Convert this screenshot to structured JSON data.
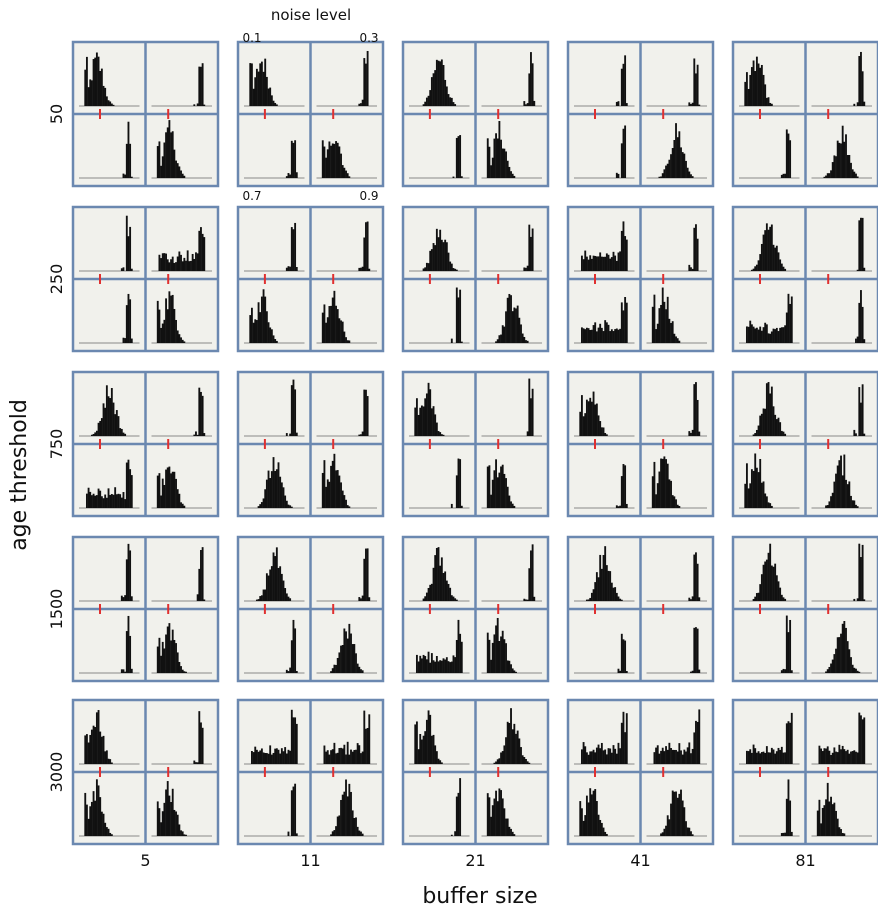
{
  "chart_data": {
    "type": "histogram-grid",
    "xlabel": "buffer size",
    "ylabel": "age threshold",
    "columns": [
      "5",
      "11",
      "21",
      "41",
      "81"
    ],
    "rows": [
      "50",
      "250",
      "750",
      "1500",
      "3000"
    ],
    "annotation_title": "noise level",
    "noise_levels": [
      "0.1",
      "0.3",
      "0.7",
      "0.9"
    ],
    "colors": {
      "group_border": "#6b88b0",
      "panel_fill": "#f1f1ec",
      "bars": "#111111",
      "marker": "#e03030"
    },
    "panel_shapes_by_row": [
      [
        [
          "L",
          "R",
          "R",
          "L"
        ],
        [
          "L",
          "R",
          "R",
          "L"
        ],
        [
          "C",
          "R",
          "R",
          "L"
        ],
        [
          "R",
          "R",
          "R",
          "C"
        ],
        [
          "L",
          "R",
          "R",
          "C"
        ]
      ],
      [
        [
          "R",
          "B",
          "R",
          "L"
        ],
        [
          "R",
          "R",
          "L",
          "L"
        ],
        [
          "C",
          "R",
          "R",
          "C"
        ],
        [
          "B",
          "R",
          "B",
          "L"
        ],
        [
          "C",
          "R",
          "B",
          "R"
        ]
      ],
      [
        [
          "C",
          "R",
          "B",
          "L"
        ],
        [
          "R",
          "R",
          "C",
          "L"
        ],
        [
          "L",
          "R",
          "R",
          "L"
        ],
        [
          "L",
          "R",
          "R",
          "L"
        ],
        [
          "C",
          "R",
          "L",
          "C"
        ]
      ],
      [
        [
          "R",
          "R",
          "R",
          "L"
        ],
        [
          "C",
          "R",
          "R",
          "C"
        ],
        [
          "C",
          "R",
          "B",
          "L"
        ],
        [
          "C",
          "R",
          "R",
          "R"
        ],
        [
          "C",
          "R",
          "R",
          "C"
        ]
      ],
      [
        [
          "L",
          "R",
          "L",
          "L"
        ],
        [
          "B",
          "B",
          "R",
          "C"
        ],
        [
          "L",
          "C",
          "R",
          "L"
        ],
        [
          "B",
          "B",
          "L",
          "C"
        ],
        [
          "B",
          "B",
          "R",
          "L"
        ]
      ]
    ]
  }
}
